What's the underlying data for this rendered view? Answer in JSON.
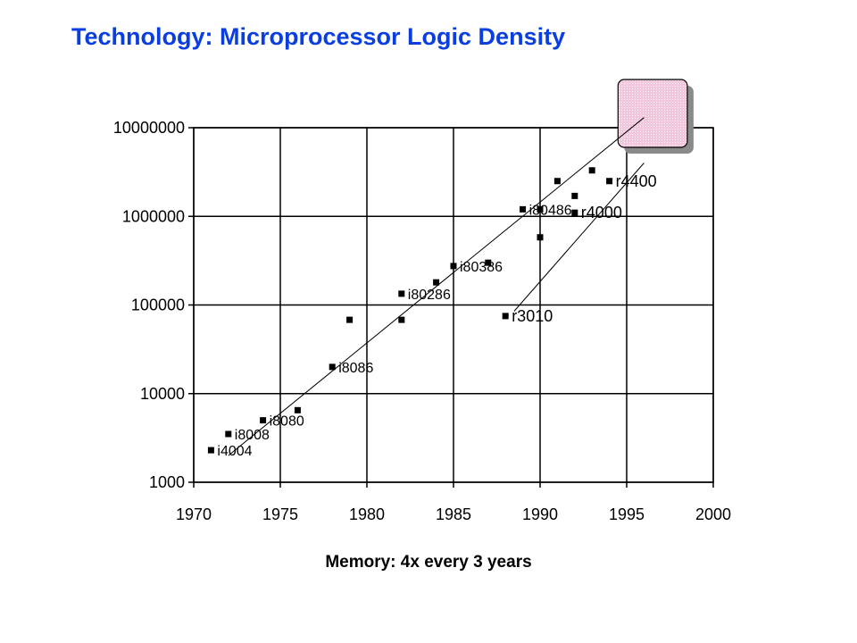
{
  "title": "Technology: Microprocessor Logic Density",
  "caption": "Memory: 4x every 3 years",
  "colors": {
    "title": "#0a3ee0",
    "highlight_fill": "#f2c6dc",
    "highlight_shadow": "#8a8a8a"
  },
  "chart_data": {
    "type": "scatter",
    "title": "Technology: Microprocessor Logic Density",
    "xlabel": "",
    "ylabel": "",
    "xlim": [
      1970,
      2000
    ],
    "ylim": [
      1000,
      10000000
    ],
    "yscale": "log",
    "grid": true,
    "x_ticks": [
      "1970",
      "1975",
      "1980",
      "1985",
      "1990",
      "1995",
      "2000"
    ],
    "y_ticks": [
      "1000",
      "10000",
      "100000",
      "1000000",
      "10000000"
    ],
    "points": [
      {
        "x": 1971,
        "y": 2300,
        "label": "i4004"
      },
      {
        "x": 1972,
        "y": 3500,
        "label": "i8008"
      },
      {
        "x": 1974,
        "y": 5000,
        "label": "i8080"
      },
      {
        "x": 1976,
        "y": 6500,
        "label": ""
      },
      {
        "x": 1978,
        "y": 20000,
        "label": "i8086"
      },
      {
        "x": 1979,
        "y": 68000,
        "label": ""
      },
      {
        "x": 1982,
        "y": 134000,
        "label": "i80286"
      },
      {
        "x": 1982,
        "y": 68000,
        "label": ""
      },
      {
        "x": 1984,
        "y": 180000,
        "label": ""
      },
      {
        "x": 1985,
        "y": 275000,
        "label": "i80386"
      },
      {
        "x": 1987,
        "y": 300000,
        "label": ""
      },
      {
        "x": 1988,
        "y": 75000,
        "label": "r3010"
      },
      {
        "x": 1989,
        "y": 1200000,
        "label": "i80486"
      },
      {
        "x": 1990,
        "y": 1200000,
        "label": ""
      },
      {
        "x": 1990,
        "y": 580000,
        "label": ""
      },
      {
        "x": 1991,
        "y": 2500000,
        "label": ""
      },
      {
        "x": 1992,
        "y": 1100000,
        "label": "r4000"
      },
      {
        "x": 1992,
        "y": 1700000,
        "label": ""
      },
      {
        "x": 1993,
        "y": 3300000,
        "label": ""
      },
      {
        "x": 1994,
        "y": 2500000,
        "label": "r4400"
      }
    ],
    "trend_lines": [
      {
        "from": {
          "x": 1972,
          "y": 2000
        },
        "to": {
          "x": 1996,
          "y": 13000000
        }
      },
      {
        "from": {
          "x": 1988.5,
          "y": 85000
        },
        "to": {
          "x": 1996,
          "y": 4000000
        }
      }
    ],
    "highlight_box": {
      "x_range": [
        1994.5,
        1998.5
      ],
      "y_range": [
        6000000,
        35000000
      ]
    }
  }
}
